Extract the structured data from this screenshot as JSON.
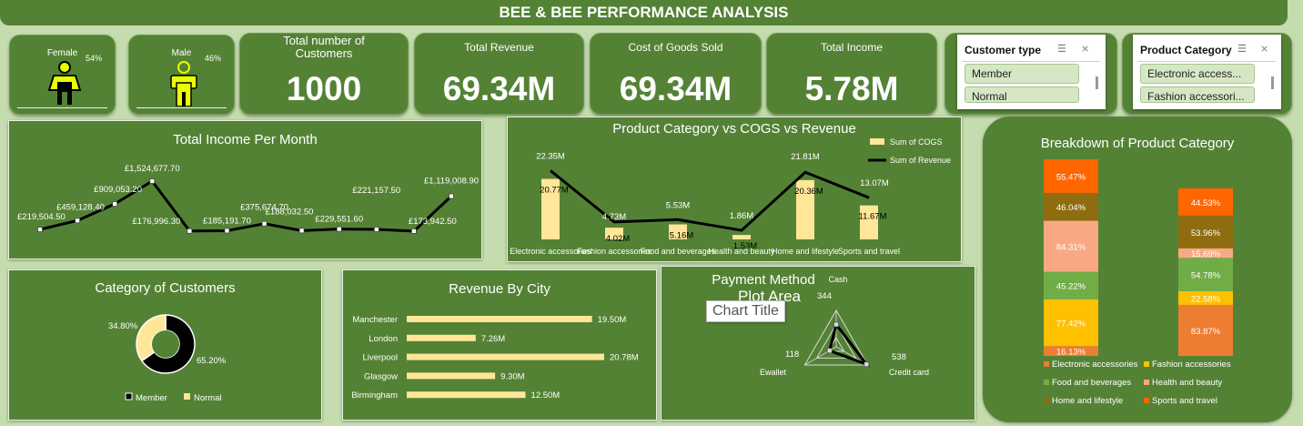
{
  "header": {
    "title": "BEE & BEE PERFORMANCE ANALYSIS"
  },
  "gender": {
    "female": {
      "label": "Female",
      "pct": "54%"
    },
    "male": {
      "label": "Male",
      "pct": "46%"
    }
  },
  "kpis": {
    "customers": {
      "label": "Total number of Customers",
      "value": "1000"
    },
    "revenue": {
      "label": "Total Revenue",
      "value": "69.34M"
    },
    "cogs": {
      "label": "Cost of Goods Sold",
      "value": "69.34M"
    },
    "income": {
      "label": "Total Income",
      "value": "5.78M"
    }
  },
  "slicers": {
    "customer_type": {
      "title": "Customer type",
      "items": [
        "Member",
        "Normal"
      ]
    },
    "product_category": {
      "title": "Product Category",
      "items": [
        "Electronic access...",
        "Fashion accessori..."
      ]
    }
  },
  "colors": {
    "panel": "#548235",
    "background": "#c5dcae",
    "bar_light": "#ffe699",
    "line": "#000000",
    "orange_dark": "#ff6600",
    "brown": "#8f6d0e",
    "salmon": "#f8a984",
    "green": "#70ad47",
    "gold": "#ffc000",
    "orange": "#ed7d31"
  },
  "chart_data": [
    {
      "id": "income-per-month",
      "type": "line",
      "title": "Total Income Per Month",
      "values": [
        219504.5,
        459128.4,
        909053.2,
        1524677.7,
        176996.3,
        185191.7,
        375674.7,
        188032.5,
        229551.6,
        221157.5,
        173942.5,
        1119008.9
      ],
      "labels": [
        "£219,504.50",
        "£459,128.40",
        "£909,053.20",
        "£1,524,677.70",
        "£176,996.30",
        "£185,191.70",
        "£375,674.70",
        "£188,032.50",
        "£229,551.60",
        "£221,157.50",
        "£173,942.50",
        "£1,119,008.90"
      ]
    },
    {
      "id": "category-cogs-revenue",
      "type": "bar",
      "title": "Product Category vs COGS vs Revenue",
      "categories": [
        "Electronic accessories",
        "Fashion accessories",
        "Food and beverages",
        "Health and beauty",
        "Home and lifestyle",
        "Sports and travel"
      ],
      "series": [
        {
          "name": "Sum of COGS",
          "values": [
            20.77,
            4.02,
            5.16,
            1.53,
            20.36,
            11.67
          ],
          "labels": [
            "20.77M",
            "4.02M",
            "5.16M",
            "1.53M",
            "20.36M",
            "11.67M"
          ]
        },
        {
          "name": "Sum of Revenue",
          "values": [
            22.35,
            4.73,
            5.53,
            1.86,
            21.81,
            13.07
          ],
          "labels": [
            "22.35M",
            "4.73M",
            "5.53M",
            "1.86M",
            "21.81M",
            "13.07M"
          ]
        }
      ],
      "ylim": [
        0,
        25
      ]
    },
    {
      "id": "category-breakdown",
      "type": "bar",
      "stacked": true,
      "title": "Breakdown of Product Category",
      "legend": [
        "Electronic accessories",
        "Fashion accessories",
        "Food and beverages",
        "Health and beauty",
        "Home and lifestyle",
        "Sports and travel"
      ],
      "columns": [
        {
          "segments": [
            {
              "series": "Electronic accessories",
              "value": 16.13,
              "label": "16.13%"
            },
            {
              "series": "Fashion accessories",
              "value": 77.42,
              "label": "77.42%"
            },
            {
              "series": "Food and beverages",
              "value": 45.22,
              "label": "45.22%"
            },
            {
              "series": "Health and beauty",
              "value": 84.31,
              "label": "84.31%"
            },
            {
              "series": "Home and lifestyle",
              "value": 46.04,
              "label": "46.04%"
            },
            {
              "series": "Sports and travel",
              "value": 55.47,
              "label": "55.47%"
            }
          ]
        },
        {
          "segments": [
            {
              "series": "Electronic accessories",
              "value": 83.87,
              "label": "83.87%"
            },
            {
              "series": "Fashion accessories",
              "value": 22.58,
              "label": "22.58%"
            },
            {
              "series": "Food and beverages",
              "value": 54.78,
              "label": "54.78%"
            },
            {
              "series": "Health and beauty",
              "value": 15.69,
              "label": "15.69%"
            },
            {
              "series": "Home and lifestyle",
              "value": 53.96,
              "label": "53.96%"
            },
            {
              "series": "Sports and travel",
              "value": 44.53,
              "label": "44.53%"
            }
          ]
        }
      ]
    },
    {
      "id": "category-of-customers",
      "type": "pie",
      "donut": true,
      "title": "Category of Customers",
      "slices": [
        {
          "name": "Member",
          "value": 65.2,
          "label": "65.20%"
        },
        {
          "name": "Normal",
          "value": 34.8,
          "label": "34.80%"
        }
      ]
    },
    {
      "id": "revenue-by-city",
      "type": "bar",
      "orientation": "horizontal",
      "title": "Revenue By City",
      "categories": [
        "Manchester",
        "London",
        "Liverpool",
        "Glasgow",
        "Birmingham"
      ],
      "values": [
        19.5,
        7.26,
        20.78,
        9.3,
        12.5
      ],
      "labels": [
        "19.50M",
        "7.26M",
        "20.78M",
        "9.30M",
        "12.50M"
      ]
    },
    {
      "id": "payment-method",
      "type": "radar",
      "title": "Payment Method",
      "categories": [
        "Cash",
        "Credit card",
        "Ewallet"
      ],
      "values": [
        344,
        538,
        118
      ],
      "labels": [
        "344",
        "538",
        "118"
      ]
    }
  ],
  "tooltips": {
    "plot_area": "Plot Area",
    "chart_title": "Chart Title"
  }
}
